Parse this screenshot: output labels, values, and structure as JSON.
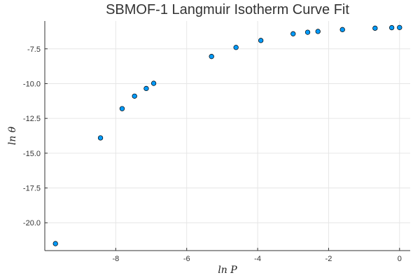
{
  "chart_data": {
    "type": "scatter",
    "title": "SBMOF-1 Langmuir Isotherm Curve Fit",
    "xlabel": "ln P",
    "ylabel": "ln θ",
    "xlim": [
      -10.0,
      0.3
    ],
    "ylim": [
      -22.0,
      -5.5
    ],
    "xticks": [
      -8,
      -6,
      -4,
      -2,
      0
    ],
    "xtick_labels": [
      "-8",
      "-6",
      "-4",
      "-2",
      "0"
    ],
    "yticks": [
      -7.5,
      -10.0,
      -12.5,
      -15.0,
      -17.5,
      -20.0
    ],
    "ytick_labels": [
      "-7.5",
      "-10.0",
      "-12.5",
      "-15.0",
      "-17.5",
      "-20.0"
    ],
    "grid": true,
    "legend": "none",
    "marker_color": "#009af9",
    "series": [
      {
        "x": [
          -9.7,
          -8.43,
          -7.82,
          -7.47,
          -7.14,
          -6.93,
          -5.3,
          -4.61,
          -3.91,
          -3.0,
          -2.59,
          -2.3,
          -1.61,
          -0.69,
          -0.22,
          0.0
        ],
        "y": [
          -21.5,
          -13.9,
          -11.8,
          -10.9,
          -10.35,
          -9.98,
          -8.05,
          -7.4,
          -6.9,
          -6.42,
          -6.31,
          -6.25,
          -6.12,
          -6.02,
          -5.98,
          -5.97
        ]
      }
    ]
  }
}
